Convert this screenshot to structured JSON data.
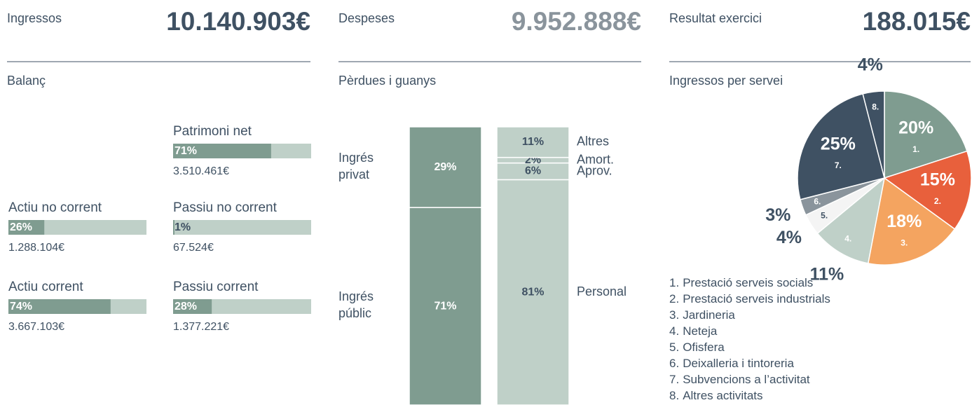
{
  "kpis": [
    {
      "label": "Ingressos",
      "value": "10.140.903€",
      "color": "#3f5163"
    },
    {
      "label": "Despeses",
      "value": "9.952.888€",
      "color": "#8a949c"
    },
    {
      "label": "Resultat exercici",
      "value": "188.015€",
      "color": "#3f5163"
    }
  ],
  "chart_data": [
    {
      "type": "progress",
      "title": "Balanç",
      "color": "#7f9c90",
      "track_color": "#bfd0c8",
      "xlim": [
        0,
        100
      ],
      "items": [
        {
          "name": "Patrimoni net",
          "value": 71,
          "value_label": "71%",
          "amount": "3.510.461€"
        },
        {
          "name": "Actiu no corrent",
          "value": 26,
          "value_label": "26%",
          "amount": "1.288.104€"
        },
        {
          "name": "Passiu no corrent",
          "value": 1,
          "value_label": "1%",
          "amount": "67.524€"
        },
        {
          "name": "Actiu corrent",
          "value": 74,
          "value_label": "74%",
          "amount": "3.667.103€"
        },
        {
          "name": "Passiu corrent",
          "value": 28,
          "value_label": "28%",
          "amount": "1.377.221€"
        }
      ]
    },
    {
      "type": "stacked_bar",
      "title": "Pèrdues i guanys",
      "ylim": [
        0,
        100
      ],
      "bars": [
        {
          "color": "#7f9c90",
          "segments": [
            {
              "name": "Ingrés públic",
              "value": 71,
              "value_label": "71%"
            },
            {
              "name": "Ingrés privat",
              "value": 29,
              "value_label": "29%"
            }
          ]
        },
        {
          "color": "#bfd0c8",
          "segments": [
            {
              "name": "Personal",
              "value": 81,
              "value_label": "81%"
            },
            {
              "name": "Aprov.",
              "value": 6,
              "value_label": "6%"
            },
            {
              "name": "Amort.",
              "value": 2,
              "value_label": "2%"
            },
            {
              "name": "Altres",
              "value": 11,
              "value_label": "11%"
            }
          ]
        }
      ]
    },
    {
      "type": "pie",
      "title": "Ingressos per servei",
      "slices": [
        {
          "key": "1.",
          "name": "Prestació serveis socials",
          "value": 20,
          "value_label": "20%",
          "color": "#7f9c90"
        },
        {
          "key": "2.",
          "name": "Prestació serveis industrials",
          "value": 15,
          "value_label": "15%",
          "color": "#e8603c"
        },
        {
          "key": "3.",
          "name": "Jardineria",
          "value": 18,
          "value_label": "18%",
          "color": "#f4a460"
        },
        {
          "key": "4.",
          "name": "Neteja",
          "value": 11,
          "value_label": "11%",
          "color": "#bfd0c8"
        },
        {
          "key": "5.",
          "name": "Ofisfera",
          "value": 4,
          "value_label": "4%",
          "color": "#f4f4f4"
        },
        {
          "key": "6.",
          "name": "Deixalleria i tintoreria",
          "value": 3,
          "value_label": "3%",
          "color": "#8a949c"
        },
        {
          "key": "7.",
          "name": "Subvencions a l’activitat",
          "value": 25,
          "value_label": "25%",
          "color": "#3f5163"
        },
        {
          "key": "8.",
          "name": "Altres activitats",
          "value": 4,
          "value_label": "4%",
          "color": "#3f5163"
        }
      ]
    }
  ]
}
